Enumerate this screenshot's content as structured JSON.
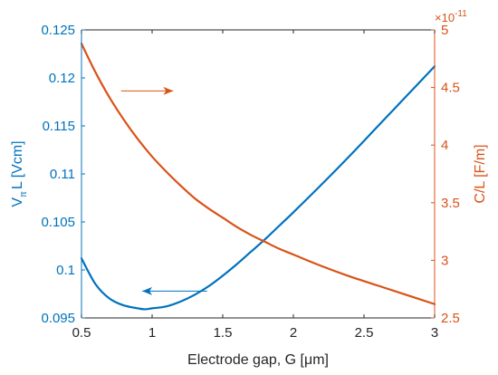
{
  "chart_data": {
    "type": "line",
    "xlabel": "Electrode gap, G  [μm]",
    "xlim": [
      0.5,
      3
    ],
    "xticks": [
      0.5,
      1,
      1.5,
      2,
      2.5,
      3
    ],
    "xtick_labels": [
      "0.5",
      "1",
      "1.5",
      "2",
      "2.5",
      "3"
    ],
    "left_axis": {
      "label_main": "V",
      "label_sub": "π",
      "label_tail": "L  [Vcm]",
      "ylim": [
        0.095,
        0.125
      ],
      "ticks": [
        0.095,
        0.1,
        0.105,
        0.11,
        0.115,
        0.12,
        0.125
      ],
      "tick_labels": [
        "0.095",
        "0.1",
        "0.105",
        "0.11",
        "0.115",
        "0.12",
        "0.125"
      ],
      "color": "#0072BD"
    },
    "right_axis": {
      "label": "C/L  [F/m]",
      "exponent_base": "×10",
      "exponent": "-11",
      "ylim": [
        2.5,
        5
      ],
      "ticks": [
        2.5,
        3,
        3.5,
        4,
        4.5,
        5
      ],
      "tick_labels": [
        "2.5",
        "3",
        "3.5",
        "4",
        "4.5",
        "5"
      ],
      "color": "#D95319"
    },
    "series": [
      {
        "axis": "left",
        "color": "#0072BD",
        "x": [
          0.5,
          0.6,
          0.7,
          0.8,
          0.9,
          0.95,
          1.0,
          1.1,
          1.2,
          1.3,
          1.4,
          1.5,
          1.6,
          1.7,
          1.8,
          1.9,
          2.0,
          2.2,
          2.4,
          2.6,
          2.8,
          3.0
        ],
        "values": [
          0.1012,
          0.0985,
          0.097,
          0.0963,
          0.096,
          0.0959,
          0.096,
          0.0962,
          0.0967,
          0.0974,
          0.0983,
          0.0994,
          0.1006,
          0.1019,
          0.1032,
          0.1046,
          0.106,
          0.1089,
          0.1119,
          0.115,
          0.1181,
          0.1212
        ]
      },
      {
        "axis": "right",
        "color": "#D95319",
        "x": [
          0.5,
          0.6,
          0.7,
          0.8,
          0.9,
          1.0,
          1.1,
          1.2,
          1.3,
          1.4,
          1.5,
          1.6,
          1.7,
          1.8,
          1.9,
          2.0,
          2.2,
          2.4,
          2.6,
          2.8,
          3.0
        ],
        "values": [
          4.88,
          4.63,
          4.41,
          4.22,
          4.05,
          3.9,
          3.77,
          3.65,
          3.54,
          3.45,
          3.37,
          3.29,
          3.22,
          3.16,
          3.1,
          3.05,
          2.95,
          2.86,
          2.78,
          2.7,
          2.62
        ]
      }
    ],
    "annotations": [
      {
        "type": "arrow",
        "color": "#D95319",
        "from": [
          0.78,
          4.47
        ],
        "to": [
          1.15,
          4.47
        ]
      },
      {
        "type": "arrow",
        "color": "#0072BD",
        "from": [
          1.39,
          0.0978
        ],
        "to": [
          0.93,
          0.0978
        ]
      }
    ]
  }
}
